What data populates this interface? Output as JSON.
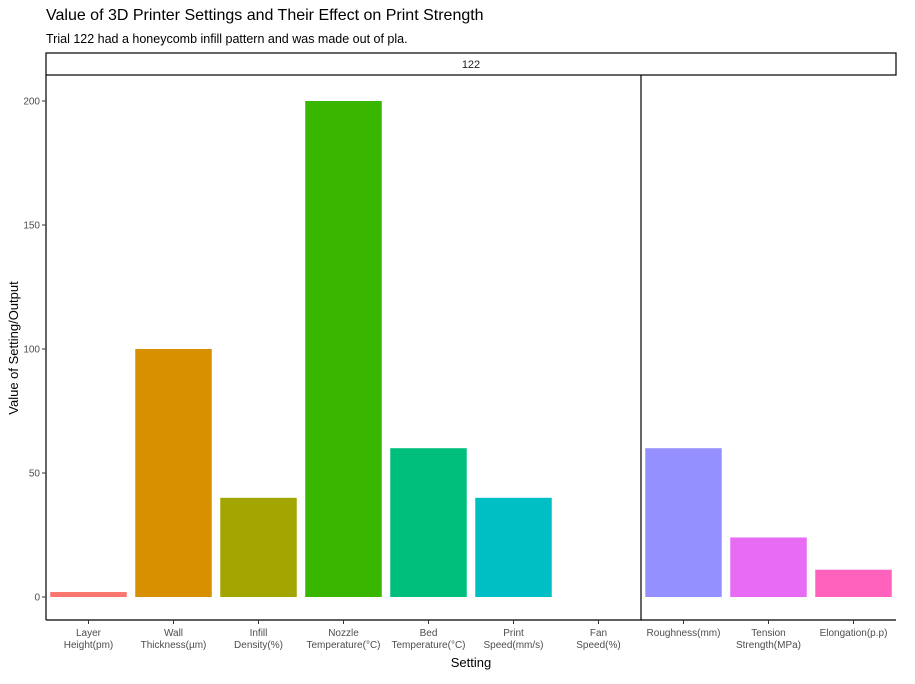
{
  "title": "Value of 3D Printer Settings and Their Effect on Print Strength",
  "subtitle": "Trial 122 had a honeycomb infill pattern and was made out of pla.",
  "chart_data": {
    "type": "bar",
    "facet_label": "122",
    "xlabel": "Setting",
    "ylabel": "Value of Setting/Output",
    "ylim": [
      0,
      200
    ],
    "yticks": [
      0,
      50,
      100,
      150,
      200
    ],
    "grid": false,
    "legend": "none",
    "categories": [
      "Layer\nHeight(pm)",
      "Wall\nThickness(µm)",
      "Infill\nDensity(%)",
      "Nozzle\nTemperature(°C)",
      "Bed\nTemperature(°C)",
      "Print\nSpeed(mm/s)",
      "Fan\nSpeed(%)",
      "Roughness(mm)",
      "Tension\nStrength(MPa)",
      "Elongation(p.p)"
    ],
    "values": [
      2,
      100,
      40,
      200,
      60,
      40,
      0,
      60,
      24,
      11
    ],
    "colors": [
      "#F8766D",
      "#D89000",
      "#A3A500",
      "#39B600",
      "#00BF7D",
      "#00BFC4",
      "#00B0F6",
      "#9590FF",
      "#E76BF3",
      "#FF62BC"
    ],
    "vertical_separator_after_category": 7
  }
}
